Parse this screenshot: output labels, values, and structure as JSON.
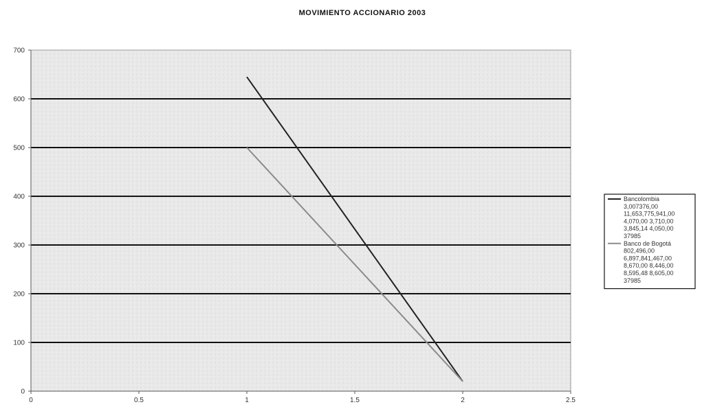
{
  "chart_data": {
    "type": "line",
    "title": "MOVIMIENTO ACCIONARIO 2003",
    "xlim": [
      0,
      2.5
    ],
    "ylim": [
      0,
      700
    ],
    "x_ticks": [
      "0",
      "0.5",
      "1",
      "1.5",
      "2",
      "2.5"
    ],
    "y_ticks": [
      "0",
      "100",
      "200",
      "300",
      "400",
      "500",
      "600",
      "700"
    ],
    "grid": true,
    "legend_position": "right",
    "series": [
      {
        "name": "Bancolombia",
        "legend_lines": [
          "Bancolombia",
          "3,007376,00",
          "11,653,775,941,00",
          "4,070,00 3,710,00",
          "3,845,14 4,050,00",
          "37985"
        ],
        "color": "#222222",
        "x": [
          1,
          2
        ],
        "y": [
          645,
          20
        ]
      },
      {
        "name": "Banco de Bogotá",
        "legend_lines": [
          "Banco de Bogotá",
          "802,496,00",
          "6,897,841,467,00",
          "8,670,00 8,446,00",
          "8,595,48 8,605,00",
          "37985"
        ],
        "color": "#8a8a8a",
        "x": [
          1,
          2
        ],
        "y": [
          500,
          20
        ]
      }
    ]
  }
}
